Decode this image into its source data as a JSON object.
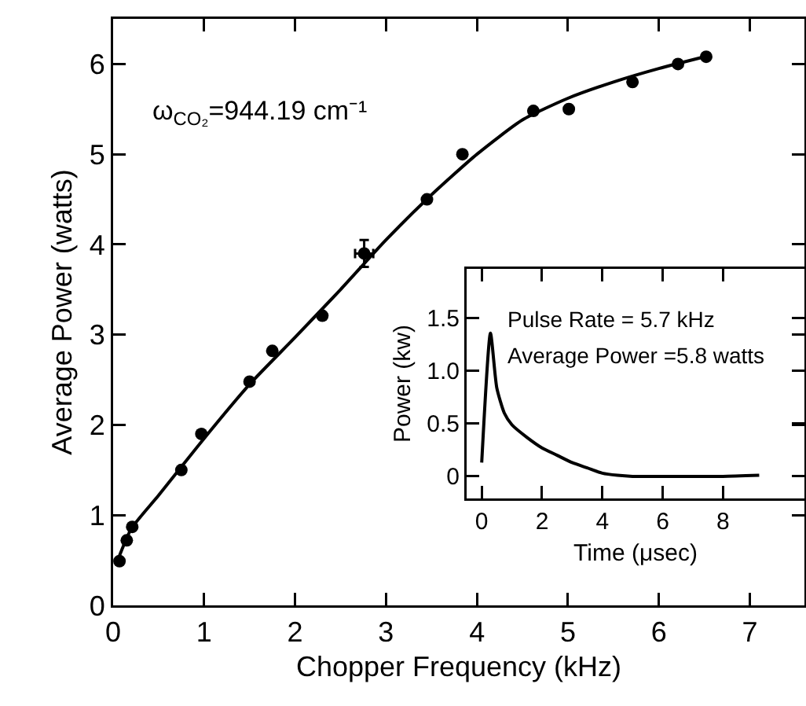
{
  "chart_data": [
    {
      "type": "scatter",
      "xlabel": "Chopper Frequency (kHz)",
      "ylabel": "Average Power (watts)",
      "annotations": [
        "ω$_{CO₂}$=944.19 cm⁻¹"
      ],
      "series": [
        {
          "color": "#000000",
          "x": [
            0.07,
            0.15,
            0.21,
            0.75,
            0.97,
            1.5,
            1.75,
            2.3,
            2.76,
            3.45,
            3.84,
            4.62,
            5.01,
            5.71,
            6.21,
            6.52
          ],
          "values": [
            0.49,
            0.72,
            0.87,
            1.5,
            1.9,
            2.48,
            2.82,
            3.21,
            3.9,
            4.5,
            5.0,
            5.48,
            5.5,
            5.8,
            6.0,
            6.08
          ],
          "errors": [
            null,
            null,
            null,
            null,
            null,
            null,
            null,
            null,
            0.15,
            null,
            null,
            null,
            null,
            null,
            null,
            null
          ],
          "xerrors": [
            null,
            null,
            null,
            null,
            null,
            null,
            null,
            null,
            0.1,
            null,
            null,
            null,
            null,
            null,
            null,
            null
          ]
        },
        {
          "type": "line",
          "marker": "none",
          "color": "#000000",
          "x": [
            0.05,
            0.2,
            0.5,
            1,
            1.5,
            2,
            2.5,
            3,
            3.5,
            4,
            4.5,
            5,
            5.5,
            6,
            6.5
          ],
          "values": [
            0.5,
            0.85,
            1.22,
            1.85,
            2.45,
            2.97,
            3.5,
            4.05,
            4.55,
            5.0,
            5.38,
            5.62,
            5.8,
            5.95,
            6.08
          ]
        }
      ],
      "xlim": [
        0,
        7.6
      ],
      "ylim": [
        0,
        6.5
      ],
      "xticks": [
        0,
        1,
        2,
        3,
        4,
        5,
        6,
        7
      ],
      "yticks": [
        0,
        1,
        2,
        3,
        4,
        5,
        6
      ],
      "grid": false,
      "marker": "circle"
    },
    {
      "type": "line",
      "xlabel": "Time (μsec)",
      "ylabel": "Power (kw)",
      "annotations": [
        "Pulse Rate = 5.7 kHz",
        "Average Power =5.8 watts"
      ],
      "series": [
        {
          "color": "#000000",
          "x": [
            0,
            0.29,
            0.5,
            0.75,
            1,
            1.5,
            2,
            2.5,
            3,
            3.5,
            4,
            4.5,
            5,
            6,
            7,
            8,
            9.2
          ],
          "values": [
            0.13,
            1.36,
            0.84,
            0.6,
            0.49,
            0.37,
            0.27,
            0.2,
            0.13,
            0.08,
            0.03,
            0.01,
            0.0,
            0.0,
            0.0,
            0.0,
            0.01
          ]
        }
      ],
      "xlim": [
        -0.5,
        10.7
      ],
      "ylim": [
        -0.21,
        1.97
      ],
      "xticks": [
        0,
        2,
        4,
        6,
        8
      ],
      "yticks": [
        0,
        {
          "value": 0.5,
          "label": "0.5"
        },
        {
          "value": 1,
          "label": "1.0"
        },
        1.5
      ],
      "grid": false,
      "marker": "none"
    }
  ]
}
